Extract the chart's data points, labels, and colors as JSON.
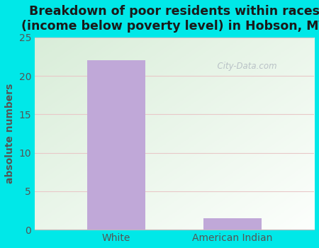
{
  "categories": [
    "White",
    "American Indian"
  ],
  "values": [
    22,
    1.5
  ],
  "bar_color": "#c0a8d8",
  "title": "Breakdown of poor residents within races\n(income below poverty level) in Hobson, MT",
  "ylabel": "absolute numbers",
  "ylim": [
    0,
    25
  ],
  "yticks": [
    0,
    5,
    10,
    15,
    20,
    25
  ],
  "title_fontsize": 12.5,
  "label_fontsize": 10,
  "tick_fontsize": 10,
  "title_color": "#1a1a1a",
  "label_color": "#555555",
  "tick_color": "#555555",
  "background_outer": "#00e8e8",
  "plot_bg_topleft": "#d8efd8",
  "plot_bg_bottomright": "#f8fff8",
  "grid_color": "#e0c8c8",
  "watermark": "  City-Data.com"
}
